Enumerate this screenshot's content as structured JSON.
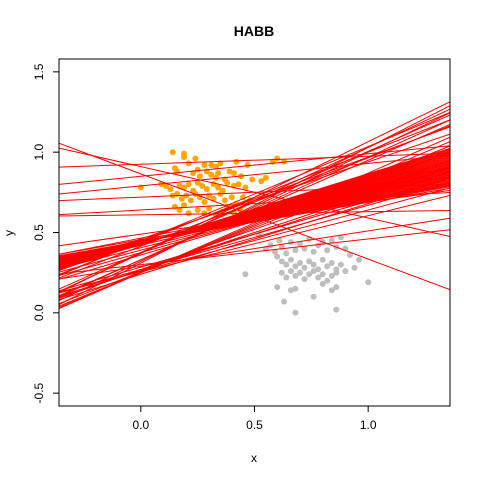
{
  "chart_data": {
    "type": "scatter",
    "title": "HABB",
    "xlabel": "x",
    "ylabel": "y",
    "xlim": [
      -0.36,
      1.36
    ],
    "ylim": [
      -0.58,
      1.58
    ],
    "x_ticks": [
      0.0,
      0.5,
      1.0
    ],
    "x_tick_labels": [
      "0.0",
      "0.5",
      "1.0"
    ],
    "y_ticks": [
      -0.5,
      0.0,
      0.5,
      1.0,
      1.5
    ],
    "y_tick_labels": [
      "-0.5",
      "0.0",
      "0.5",
      "1.0",
      "1.5"
    ],
    "grid": false,
    "legend": "none",
    "colors": {
      "orange": "#ffa500",
      "gray": "#bebebe",
      "line": "#ff0000"
    },
    "series": [
      {
        "color": "#ffa500",
        "points": [
          [
            0.14,
            1.0
          ],
          [
            0.19,
            0.99
          ],
          [
            0.19,
            0.97
          ],
          [
            0.21,
            0.93
          ],
          [
            0.24,
            0.96
          ],
          [
            0.28,
            0.92
          ],
          [
            0.31,
            0.92
          ],
          [
            0.33,
            0.91
          ],
          [
            0.35,
            0.93
          ],
          [
            0.42,
            0.94
          ],
          [
            0.47,
            0.92
          ],
          [
            0.58,
            0.94
          ],
          [
            0.6,
            0.96
          ],
          [
            0.63,
            0.94
          ],
          [
            0.15,
            0.9
          ],
          [
            0.16,
            0.88
          ],
          [
            0.23,
            0.87
          ],
          [
            0.25,
            0.89
          ],
          [
            0.26,
            0.85
          ],
          [
            0.29,
            0.88
          ],
          [
            0.31,
            0.86
          ],
          [
            0.33,
            0.84
          ],
          [
            0.34,
            0.87
          ],
          [
            0.37,
            0.83
          ],
          [
            0.39,
            0.88
          ],
          [
            0.41,
            0.87
          ],
          [
            0.44,
            0.85
          ],
          [
            0.0,
            0.78
          ],
          [
            0.09,
            0.8
          ],
          [
            0.11,
            0.79
          ],
          [
            0.13,
            0.77
          ],
          [
            0.17,
            0.79
          ],
          [
            0.19,
            0.78
          ],
          [
            0.21,
            0.8
          ],
          [
            0.23,
            0.76
          ],
          [
            0.25,
            0.81
          ],
          [
            0.27,
            0.79
          ],
          [
            0.29,
            0.77
          ],
          [
            0.32,
            0.8
          ],
          [
            0.34,
            0.78
          ],
          [
            0.36,
            0.76
          ],
          [
            0.38,
            0.81
          ],
          [
            0.41,
            0.79
          ],
          [
            0.43,
            0.8
          ],
          [
            0.46,
            0.78
          ],
          [
            0.49,
            0.83
          ],
          [
            0.53,
            0.82
          ],
          [
            0.55,
            0.84
          ],
          [
            0.14,
            0.73
          ],
          [
            0.16,
            0.74
          ],
          [
            0.18,
            0.71
          ],
          [
            0.2,
            0.73
          ],
          [
            0.22,
            0.7
          ],
          [
            0.24,
            0.74
          ],
          [
            0.26,
            0.72
          ],
          [
            0.28,
            0.69
          ],
          [
            0.3,
            0.73
          ],
          [
            0.32,
            0.71
          ],
          [
            0.35,
            0.74
          ],
          [
            0.37,
            0.7
          ],
          [
            0.4,
            0.72
          ],
          [
            0.42,
            0.68
          ],
          [
            0.45,
            0.72
          ],
          [
            0.48,
            0.7
          ],
          [
            0.15,
            0.66
          ],
          [
            0.17,
            0.64
          ],
          [
            0.19,
            0.67
          ],
          [
            0.21,
            0.62
          ],
          [
            0.25,
            0.64
          ],
          [
            0.28,
            0.62
          ],
          [
            0.3,
            0.65
          ],
          [
            0.33,
            0.61
          ],
          [
            0.36,
            0.63
          ],
          [
            0.38,
            0.66
          ],
          [
            0.41,
            0.62
          ],
          [
            0.44,
            0.64
          ],
          [
            0.47,
            0.61
          ]
        ]
      },
      {
        "color": "#bebebe",
        "points": [
          [
            0.52,
            0.48
          ],
          [
            0.55,
            0.4
          ],
          [
            0.57,
            0.42
          ],
          [
            0.59,
            0.38
          ],
          [
            0.61,
            0.45
          ],
          [
            0.62,
            0.41
          ],
          [
            0.64,
            0.37
          ],
          [
            0.66,
            0.44
          ],
          [
            0.68,
            0.39
          ],
          [
            0.7,
            0.43
          ],
          [
            0.72,
            0.4
          ],
          [
            0.74,
            0.46
          ],
          [
            0.76,
            0.38
          ],
          [
            0.78,
            0.42
          ],
          [
            0.8,
            0.44
          ],
          [
            0.82,
            0.39
          ],
          [
            0.84,
            0.45
          ],
          [
            0.86,
            0.41
          ],
          [
            0.88,
            0.47
          ],
          [
            0.9,
            0.4
          ],
          [
            0.92,
            0.36
          ],
          [
            0.6,
            0.35
          ],
          [
            0.62,
            0.32
          ],
          [
            0.64,
            0.3
          ],
          [
            0.66,
            0.33
          ],
          [
            0.68,
            0.29
          ],
          [
            0.7,
            0.31
          ],
          [
            0.72,
            0.28
          ],
          [
            0.74,
            0.32
          ],
          [
            0.76,
            0.3
          ],
          [
            0.78,
            0.27
          ],
          [
            0.8,
            0.33
          ],
          [
            0.82,
            0.29
          ],
          [
            0.84,
            0.31
          ],
          [
            0.86,
            0.27
          ],
          [
            0.88,
            0.3
          ],
          [
            0.9,
            0.26
          ],
          [
            0.94,
            0.28
          ],
          [
            0.96,
            0.33
          ],
          [
            0.46,
            0.24
          ],
          [
            0.62,
            0.25
          ],
          [
            0.64,
            0.22
          ],
          [
            0.66,
            0.26
          ],
          [
            0.68,
            0.23
          ],
          [
            0.7,
            0.25
          ],
          [
            0.72,
            0.21
          ],
          [
            0.74,
            0.24
          ],
          [
            0.76,
            0.26
          ],
          [
            0.78,
            0.22
          ],
          [
            0.8,
            0.24
          ],
          [
            0.82,
            0.2
          ],
          [
            0.84,
            0.23
          ],
          [
            0.86,
            0.25
          ],
          [
            0.6,
            0.16
          ],
          [
            0.66,
            0.14
          ],
          [
            0.68,
            0.15
          ],
          [
            0.76,
            0.1
          ],
          [
            0.8,
            0.18
          ],
          [
            0.84,
            0.14
          ],
          [
            0.86,
            0.16
          ],
          [
            1.0,
            0.19
          ],
          [
            0.63,
            0.07
          ],
          [
            0.68,
            0.0
          ],
          [
            0.86,
            0.02
          ]
        ]
      }
    ],
    "lines": [
      [
        0.245,
        0.565
      ],
      [
        0.25,
        0.57
      ],
      [
        0.255,
        0.572
      ],
      [
        0.26,
        0.574
      ],
      [
        0.265,
        0.576
      ],
      [
        0.27,
        0.578
      ],
      [
        0.275,
        0.58
      ],
      [
        0.28,
        0.582
      ],
      [
        0.285,
        0.584
      ],
      [
        0.29,
        0.586
      ],
      [
        0.295,
        0.588
      ],
      [
        0.3,
        0.59
      ],
      [
        0.305,
        0.592
      ],
      [
        0.31,
        0.594
      ],
      [
        0.315,
        0.596
      ],
      [
        0.32,
        0.598
      ],
      [
        0.325,
        0.6
      ],
      [
        0.33,
        0.602
      ],
      [
        0.335,
        0.604
      ],
      [
        0.34,
        0.606
      ],
      [
        0.345,
        0.608
      ],
      [
        0.35,
        0.61
      ],
      [
        0.355,
        0.612
      ],
      [
        0.36,
        0.614
      ],
      [
        0.365,
        0.616
      ],
      [
        0.37,
        0.618
      ],
      [
        0.375,
        0.62
      ],
      [
        0.38,
        0.622
      ],
      [
        0.385,
        0.624
      ],
      [
        0.39,
        0.626
      ],
      [
        0.395,
        0.628
      ],
      [
        0.4,
        0.63
      ],
      [
        0.405,
        0.632
      ],
      [
        0.41,
        0.634
      ],
      [
        0.415,
        0.636
      ],
      [
        0.42,
        0.638
      ],
      [
        0.425,
        0.64
      ],
      [
        0.43,
        0.642
      ],
      [
        0.435,
        0.644
      ],
      [
        0.44,
        0.646
      ],
      [
        0.34,
        0.59
      ],
      [
        0.36,
        0.585
      ],
      [
        0.38,
        0.58
      ],
      [
        0.4,
        0.575
      ],
      [
        0.42,
        0.57
      ],
      [
        0.32,
        0.595
      ],
      [
        0.3,
        0.6
      ],
      [
        0.28,
        0.605
      ],
      [
        0.59,
        0.74
      ],
      [
        0.69,
        0.72
      ],
      [
        0.66,
        0.7
      ],
      [
        0.63,
        0.69
      ],
      [
        0.56,
        0.72
      ],
      [
        0.52,
        0.71
      ],
      [
        0.48,
        0.7
      ],
      [
        0.55,
        0.69
      ],
      [
        0.64,
        0.65
      ],
      [
        0.62,
        0.64
      ],
      [
        0.68,
        0.66
      ],
      [
        0.72,
        0.67
      ],
      [
        0.6,
        0.55
      ],
      [
        0.62,
        0.56
      ],
      [
        0.58,
        0.54
      ],
      [
        0.55,
        0.53
      ],
      [
        0.5,
        0.52
      ],
      [
        0.47,
        0.5
      ],
      [
        0.45,
        0.49
      ],
      [
        0.4,
        0.47
      ],
      [
        0.41,
        0.49
      ],
      [
        0.44,
        0.46
      ],
      [
        0.38,
        0.45
      ],
      [
        0.35,
        0.43
      ],
      [
        0.33,
        0.6
      ],
      [
        0.25,
        0.58
      ],
      [
        0.2,
        0.59
      ],
      [
        0.22,
        0.4
      ],
      [
        0.16,
        0.38
      ],
      [
        0.14,
        0.86
      ],
      [
        0.06,
        0.75
      ],
      [
        0.05,
        0.95
      ],
      [
        0.14,
        0.92
      ],
      [
        0.02,
        0.62
      ],
      [
        0.08,
        0.68
      ],
      [
        -0.32,
        0.75
      ],
      [
        -0.53,
        0.6
      ]
    ]
  }
}
